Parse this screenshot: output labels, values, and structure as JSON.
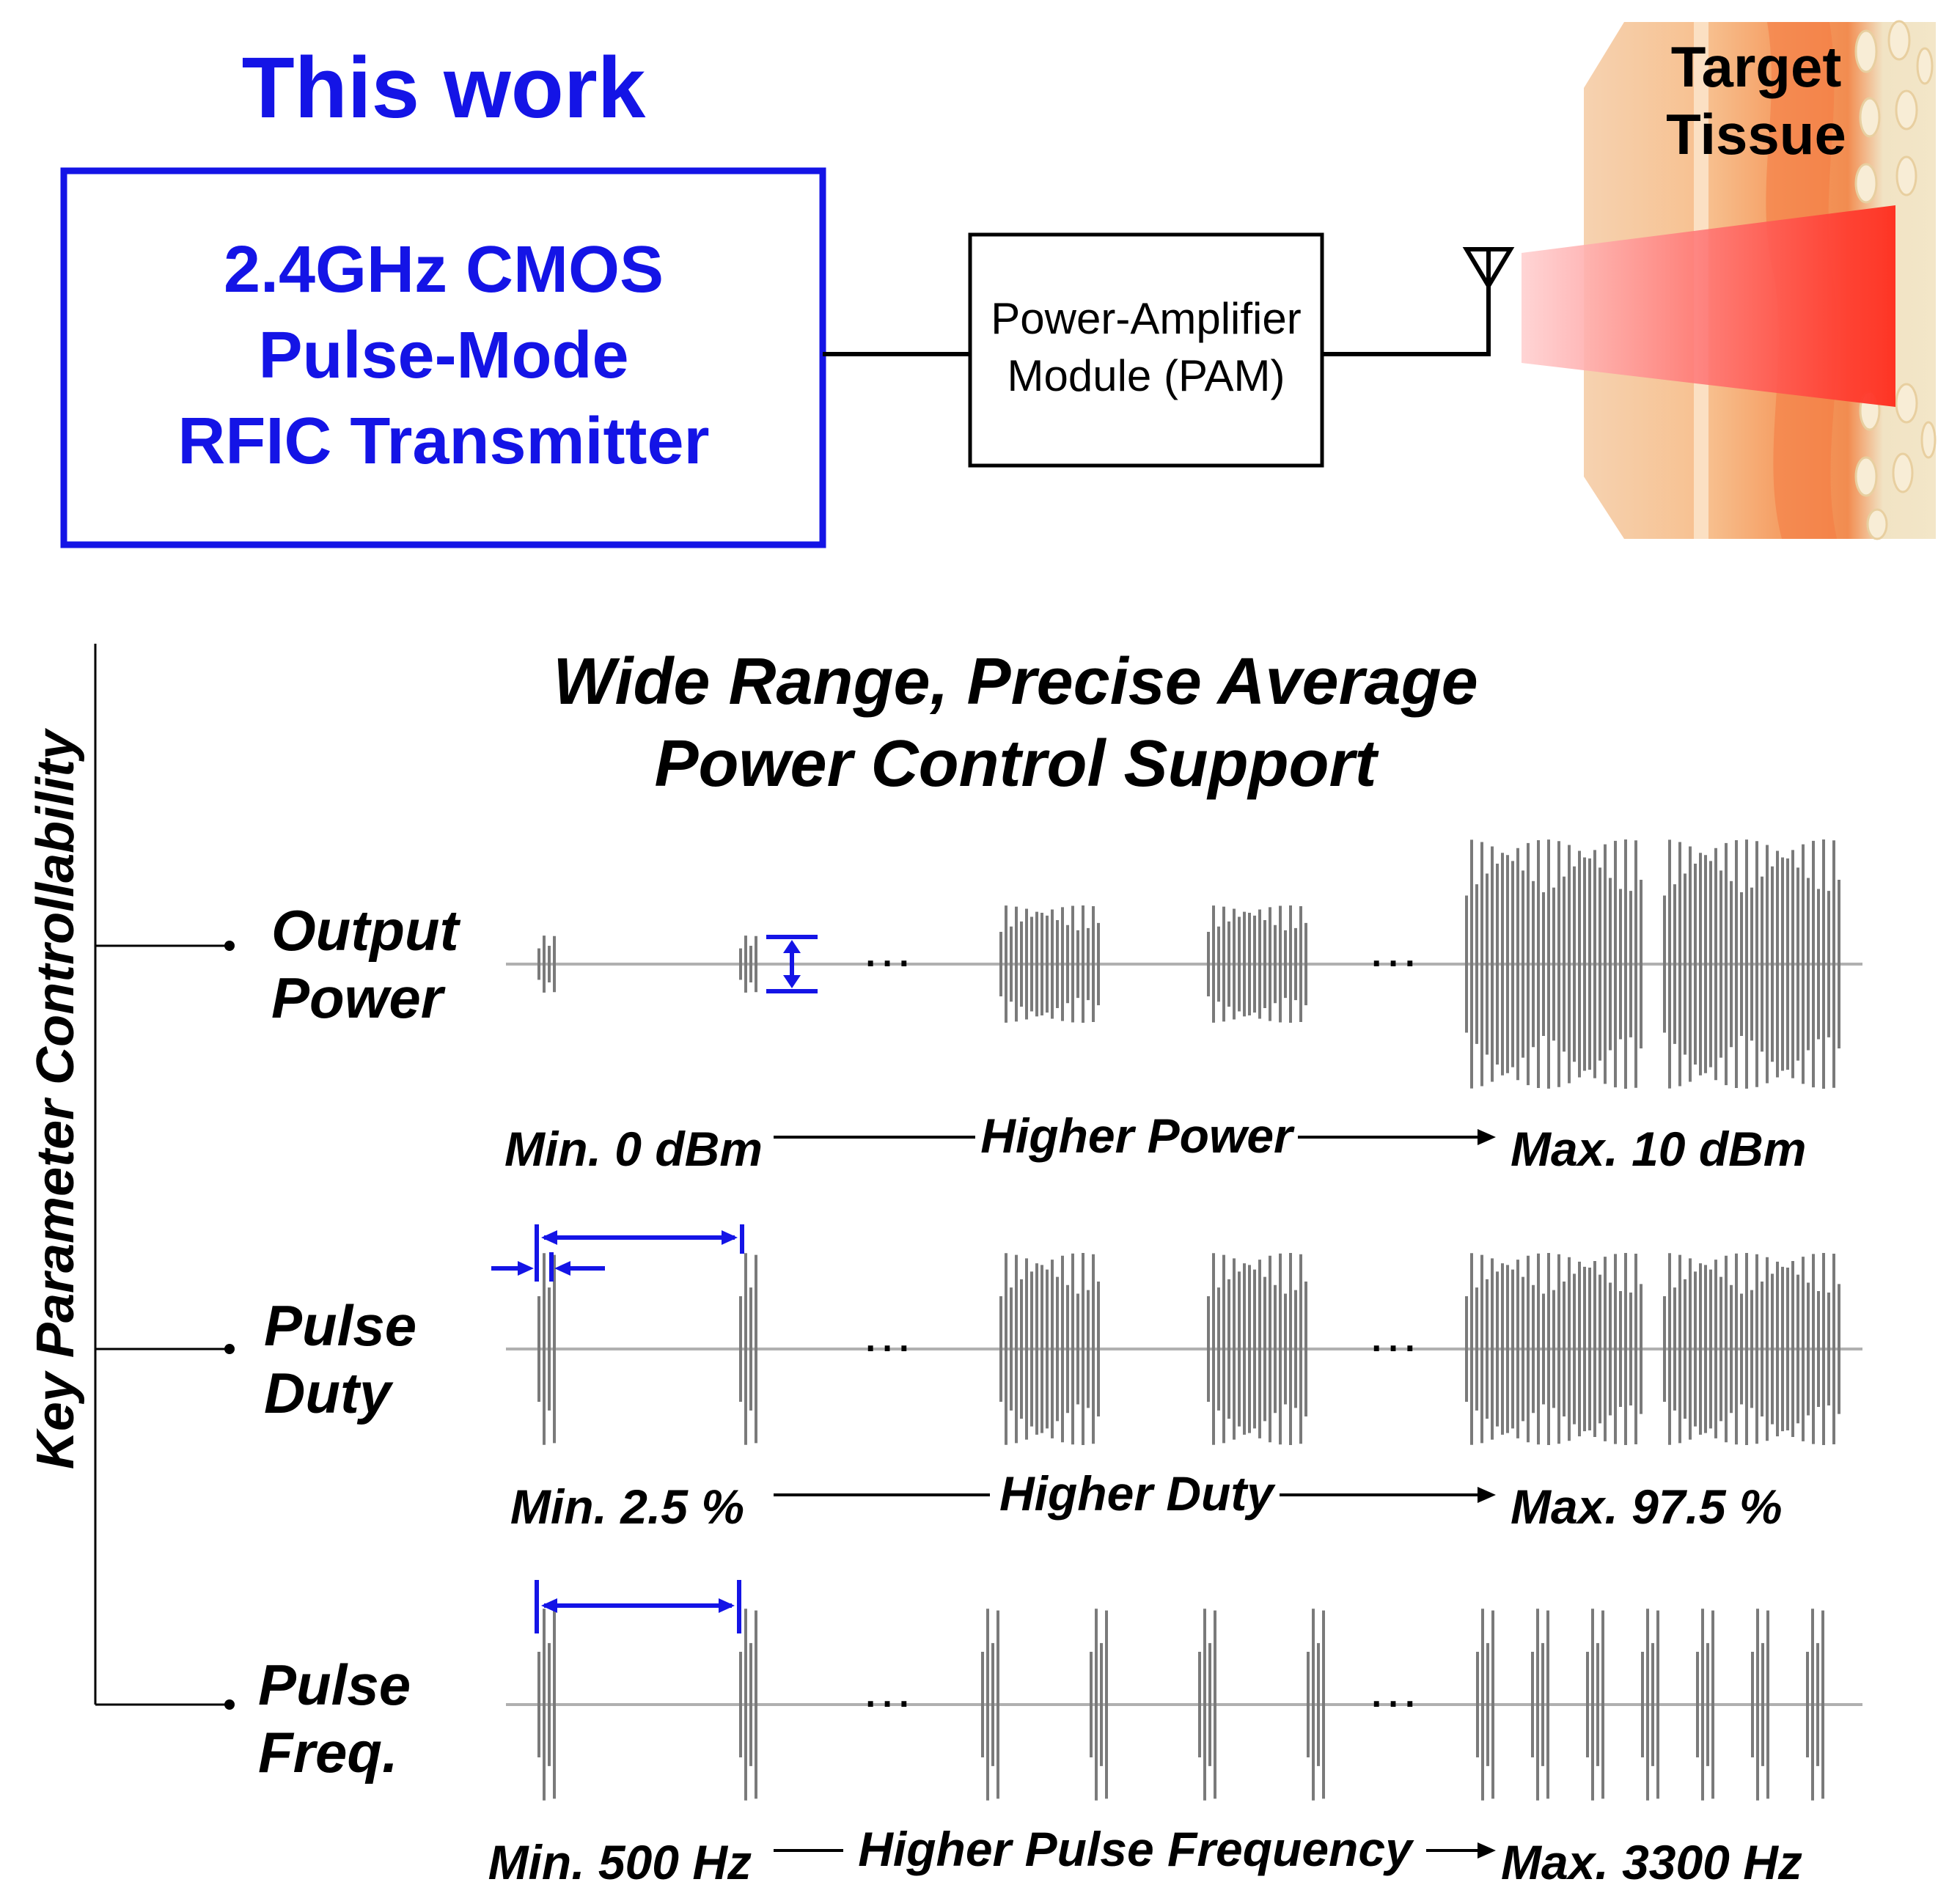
{
  "header": {
    "this_work": "This work",
    "transmitter": [
      "2.4GHz CMOS",
      "Pulse-Mode",
      "RFIC Transmitter"
    ],
    "pam": [
      "Power-Amplifier",
      "Module (PAM)"
    ],
    "tissue": [
      "Target",
      "Tissue"
    ]
  },
  "main": {
    "axis_label": "Key Parameter Controllability",
    "heading": [
      "Wide Range, Precise Average",
      "Power Control Support"
    ],
    "ellipsis": "…",
    "rows": [
      {
        "name": [
          "Output",
          "Power"
        ],
        "min_label": "Min. 0 dBm",
        "middle_label": "Higher Power",
        "max_label": "Max. 10 dBm"
      },
      {
        "name": [
          "Pulse",
          "Duty"
        ],
        "min_label": "Min. 2.5 %",
        "middle_label": "Higher Duty",
        "max_label": "Max. 97.5 %"
      },
      {
        "name": [
          "Pulse",
          "Freq."
        ],
        "min_label": "Min. 500 Hz",
        "middle_label": "Higher Pulse Frequency",
        "max_label": "Max. 3300 Hz"
      }
    ]
  },
  "colors": {
    "accent_blue": "#1414e6",
    "waveform_gray": "#7a7a7a"
  }
}
